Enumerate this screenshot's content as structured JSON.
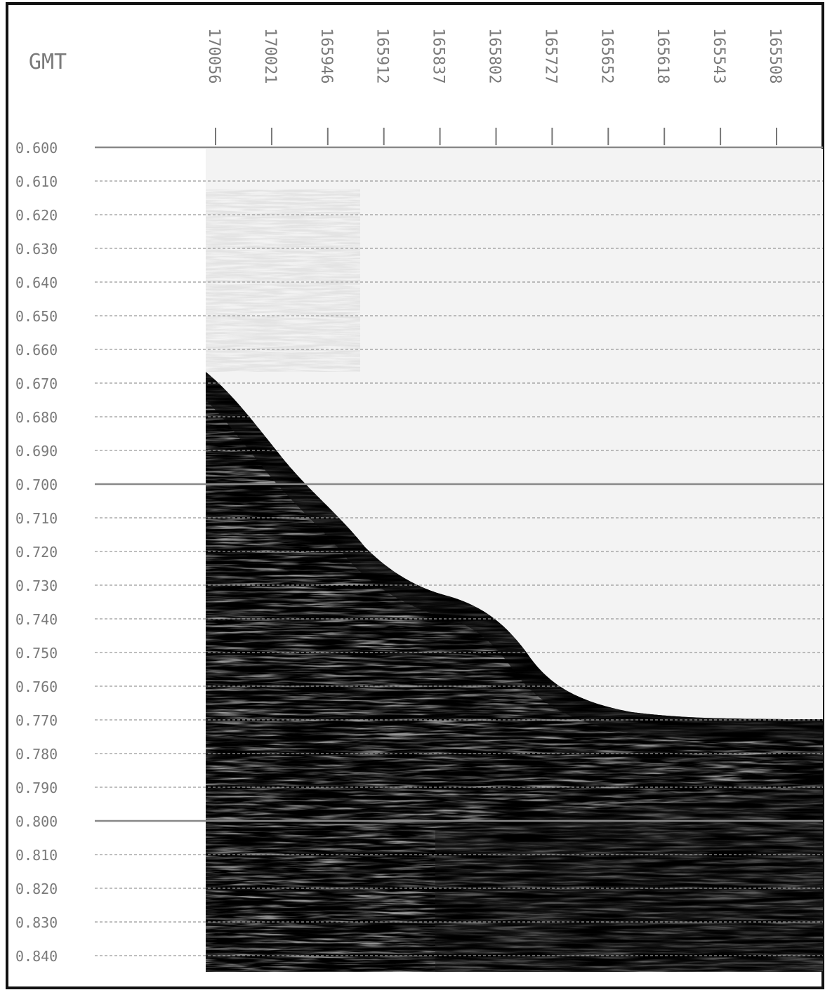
{
  "header": {
    "title": "GMT"
  },
  "gmt_ticks": [
    "170056",
    "170021",
    "165946",
    "165912",
    "165837",
    "165802",
    "165727",
    "165652",
    "165618",
    "165543",
    "165508"
  ],
  "time_ticks": [
    "0.600",
    "0.610",
    "0.620",
    "0.630",
    "0.640",
    "0.650",
    "0.660",
    "0.670",
    "0.680",
    "0.690",
    "0.700",
    "0.710",
    "0.720",
    "0.730",
    "0.740",
    "0.750",
    "0.760",
    "0.770",
    "0.780",
    "0.790",
    "0.800",
    "0.810",
    "0.820",
    "0.830",
    "0.840"
  ]
}
